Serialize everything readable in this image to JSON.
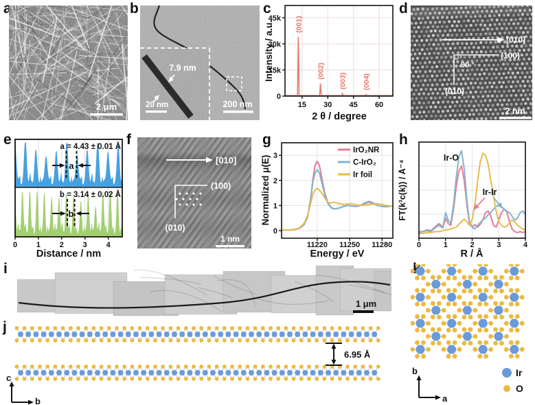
{
  "colors": {
    "ir_atom": "#6a9ad9",
    "o_atom": "#edba3d",
    "bond_gray": "#a8b2c0"
  },
  "figure": {
    "panels": {
      "a": {
        "label": "a",
        "scale_bar": "2 μm"
      },
      "b": {
        "label": "b",
        "scale_bar": "200 nm",
        "inset": {
          "width_label": "7.9 nm",
          "scale_bar": "20 nm"
        }
      },
      "c": {
        "label": "c"
      },
      "d": {
        "label": "d",
        "direction_label": "[010]",
        "plane_labels": [
          "(100)",
          "(010)"
        ],
        "angle_label": "90 °",
        "scale_bar": "2 nm"
      },
      "e": {
        "label": "e"
      },
      "f": {
        "label": "f",
        "direction_label": "[010]",
        "plane_labels": [
          "(100)",
          "(010)"
        ],
        "scale_bar": "1 nm"
      },
      "g": {
        "label": "g"
      },
      "h": {
        "label": "h"
      },
      "i": {
        "label": "i",
        "scale_bar": "1 μm"
      },
      "j": {
        "label": "j",
        "spacing_label": "6.95 Å",
        "axis_vertical": "c",
        "axis_horizontal": "b"
      },
      "k": {
        "label": "k",
        "axis_vertical": "b",
        "axis_horizontal": "a",
        "legend": [
          {
            "symbol": "Ir",
            "color": "#6a9ad9"
          },
          {
            "symbol": "O",
            "color": "#edba3d"
          }
        ]
      }
    }
  },
  "chart_data": [
    {
      "id": "xrd",
      "type": "line",
      "xlabel": "2 θ / degree",
      "ylabel": "Intensity / a.u.",
      "xlim": [
        5,
        68
      ],
      "ylim": [
        0,
        52000
      ],
      "xticks": [
        15,
        30,
        45,
        60
      ],
      "yticks": [
        {
          "label": "0",
          "value": 0
        },
        {
          "label": "15k",
          "value": 15000
        },
        {
          "label": "30k",
          "value": 30000
        },
        {
          "label": "45k",
          "value": 45000
        }
      ],
      "grid": true,
      "color": "#e4796f",
      "baseline": 300,
      "peaks": [
        {
          "label": "(001)",
          "two_theta": 12.8,
          "intensity": 34000
        },
        {
          "label": "(002)",
          "two_theta": 25.7,
          "intensity": 7200
        },
        {
          "label": "(003)",
          "two_theta": 38.6,
          "intensity": 1500
        },
        {
          "label": "(004)",
          "two_theta": 52.3,
          "intensity": 1000
        }
      ]
    },
    {
      "id": "profiles",
      "type": "area",
      "xlabel": "Distance / nm",
      "xlim": [
        0,
        4.6
      ],
      "xticks": [
        0,
        1,
        2,
        3,
        4
      ],
      "series": [
        {
          "name": "lattice spacing a",
          "annotation": "a = 4.43 ± 0.01 Å",
          "marker_label": "a",
          "period_nm": 0.443,
          "color": "#47a0e0"
        },
        {
          "name": "lattice spacing b",
          "annotation": "b = 3.14 ± 0.02 Å",
          "marker_label": "b",
          "period_nm": 0.314,
          "color": "#a2cf70"
        }
      ]
    },
    {
      "id": "xanes",
      "type": "line",
      "xlabel": "Energy / eV",
      "ylabel": "Normalized μ(E)",
      "xlim": [
        11187,
        11290
      ],
      "ylim": [
        -0.3,
        3.5
      ],
      "xticks": [
        11220,
        11250,
        11280
      ],
      "yticks": [
        0,
        1,
        2,
        3
      ],
      "grid": true,
      "legend_position": "top-right",
      "x": [
        11187,
        11195,
        11200,
        11204,
        11208,
        11211,
        11214,
        11216,
        11218,
        11220,
        11222,
        11224,
        11227,
        11230,
        11233,
        11236,
        11240,
        11244,
        11248,
        11252,
        11256,
        11260,
        11264,
        11268,
        11272,
        11276,
        11280,
        11284,
        11288,
        11290
      ],
      "series": [
        {
          "name": "IrO₂NR",
          "color": "#e27d95",
          "y": [
            0.02,
            0.03,
            0.05,
            0.1,
            0.25,
            0.55,
            1.3,
            2.05,
            2.6,
            2.76,
            2.6,
            2.15,
            1.5,
            1.1,
            0.92,
            0.87,
            0.9,
            0.96,
            1.0,
            0.99,
            0.96,
            1.0,
            1.08,
            1.13,
            1.08,
            1.0,
            0.97,
            0.96,
            0.97,
            0.97
          ]
        },
        {
          "name": "C-IrO₂",
          "color": "#82b4cb",
          "y": [
            0.02,
            0.03,
            0.05,
            0.1,
            0.24,
            0.52,
            1.25,
            1.95,
            2.3,
            2.42,
            2.3,
            1.95,
            1.42,
            1.08,
            0.9,
            0.86,
            0.89,
            0.95,
            1.0,
            0.98,
            0.96,
            1.01,
            1.1,
            1.17,
            1.1,
            1.0,
            0.96,
            0.95,
            0.97,
            0.97
          ]
        },
        {
          "name": "Ir foil",
          "color": "#e7bb4d",
          "y": [
            0.02,
            0.03,
            0.06,
            0.12,
            0.3,
            0.6,
            1.1,
            1.45,
            1.62,
            1.68,
            1.62,
            1.5,
            1.3,
            1.12,
            1.1,
            1.13,
            1.08,
            1.04,
            1.06,
            1.07,
            1.03,
            1.0,
            1.01,
            1.04,
            1.06,
            1.07,
            1.04,
            1.0,
            0.98,
            0.97
          ]
        }
      ]
    },
    {
      "id": "exafs",
      "type": "line",
      "xlabel": "R / Å",
      "ylabel": "FT(k³c(k)) / Å⁻⁴",
      "xlim": [
        0,
        4
      ],
      "ylim": [
        0,
        1.05
      ],
      "xticks": [
        0,
        1,
        2,
        3,
        4
      ],
      "grid": true,
      "annotations": [
        {
          "text": "Ir-O"
        },
        {
          "text": "Ir-Ir"
        }
      ],
      "x": [
        0,
        0.15,
        0.3,
        0.45,
        0.6,
        0.75,
        0.9,
        1.0,
        1.1,
        1.2,
        1.3,
        1.4,
        1.5,
        1.6,
        1.7,
        1.8,
        1.9,
        2.0,
        2.1,
        2.2,
        2.3,
        2.4,
        2.5,
        2.6,
        2.7,
        2.8,
        2.9,
        3.0,
        3.1,
        3.2,
        3.3,
        3.4,
        3.5,
        3.6,
        3.7,
        3.8,
        3.9,
        4.0
      ],
      "series": [
        {
          "name": "IrO₂NR",
          "color": "#e27d95",
          "y": [
            0.05,
            0.05,
            0.07,
            0.06,
            0.1,
            0.14,
            0.1,
            0.2,
            0.14,
            0.12,
            0.3,
            0.55,
            0.72,
            0.78,
            0.62,
            0.35,
            0.14,
            0.1,
            0.13,
            0.1,
            0.13,
            0.18,
            0.26,
            0.28,
            0.22,
            0.12,
            0.1,
            0.18,
            0.26,
            0.3,
            0.27,
            0.16,
            0.08,
            0.05,
            0.04,
            0.05,
            0.04,
            0.05
          ]
        },
        {
          "name": "C-IrO₂",
          "color": "#82b4cb",
          "y": [
            0.04,
            0.05,
            0.06,
            0.05,
            0.09,
            0.12,
            0.09,
            0.26,
            0.18,
            0.14,
            0.35,
            0.65,
            0.88,
            0.95,
            0.75,
            0.4,
            0.16,
            0.1,
            0.08,
            0.12,
            0.15,
            0.18,
            0.2,
            0.24,
            0.26,
            0.3,
            0.33,
            0.34,
            0.33,
            0.3,
            0.28,
            0.26,
            0.22,
            0.18,
            0.2,
            0.26,
            0.28,
            0.24
          ]
        },
        {
          "name": "Ir foil",
          "color": "#e7bb4d",
          "y": [
            0.03,
            0.03,
            0.04,
            0.04,
            0.05,
            0.05,
            0.06,
            0.07,
            0.07,
            0.08,
            0.09,
            0.1,
            0.13,
            0.16,
            0.19,
            0.16,
            0.12,
            0.18,
            0.35,
            0.6,
            0.82,
            0.92,
            0.9,
            0.8,
            0.62,
            0.45,
            0.28,
            0.16,
            0.12,
            0.1,
            0.11,
            0.15,
            0.18,
            0.16,
            0.12,
            0.1,
            0.08,
            0.07
          ]
        }
      ]
    }
  ]
}
